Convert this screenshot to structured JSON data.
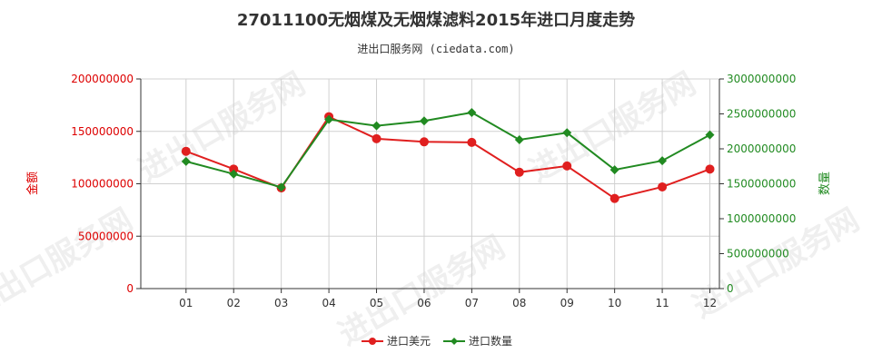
{
  "chart_data": {
    "type": "line",
    "title": "27011100无烟煤及无烟煤滤料2015年进口月度走势",
    "subtitle": "进出口服务网 (ciedata.com)",
    "categories": [
      "01",
      "02",
      "03",
      "04",
      "05",
      "06",
      "07",
      "08",
      "09",
      "10",
      "11",
      "12"
    ],
    "left_axis": {
      "label": "金额",
      "ylim": [
        0,
        200000000
      ],
      "ticks": [
        "0",
        "50000000",
        "100000000",
        "150000000",
        "200000000"
      ],
      "color": "#dd0000"
    },
    "right_axis": {
      "label": "数量",
      "ylim": [
        0,
        3000000000
      ],
      "ticks": [
        "0",
        "500000000",
        "1000000000",
        "1500000000",
        "2000000000",
        "2500000000",
        "3000000000"
      ],
      "color": "#228b22"
    },
    "series": [
      {
        "name": "进口美元",
        "axis": "left",
        "color": "#e01f1f",
        "values": [
          131000000,
          114000000,
          96000000,
          164000000,
          143000000,
          140000000,
          139500000,
          111000000,
          117000000,
          86000000,
          97000000,
          114000000
        ]
      },
      {
        "name": "进口数量",
        "axis": "right",
        "color": "#218a21",
        "values": [
          1820000000,
          1640000000,
          1450000000,
          2420000000,
          2330000000,
          2400000000,
          2520000000,
          2130000000,
          2230000000,
          1700000000,
          1830000000,
          2200000000
        ]
      }
    ],
    "grid": true,
    "legend": "bottom-center"
  },
  "watermark_text": "进出口服务网"
}
